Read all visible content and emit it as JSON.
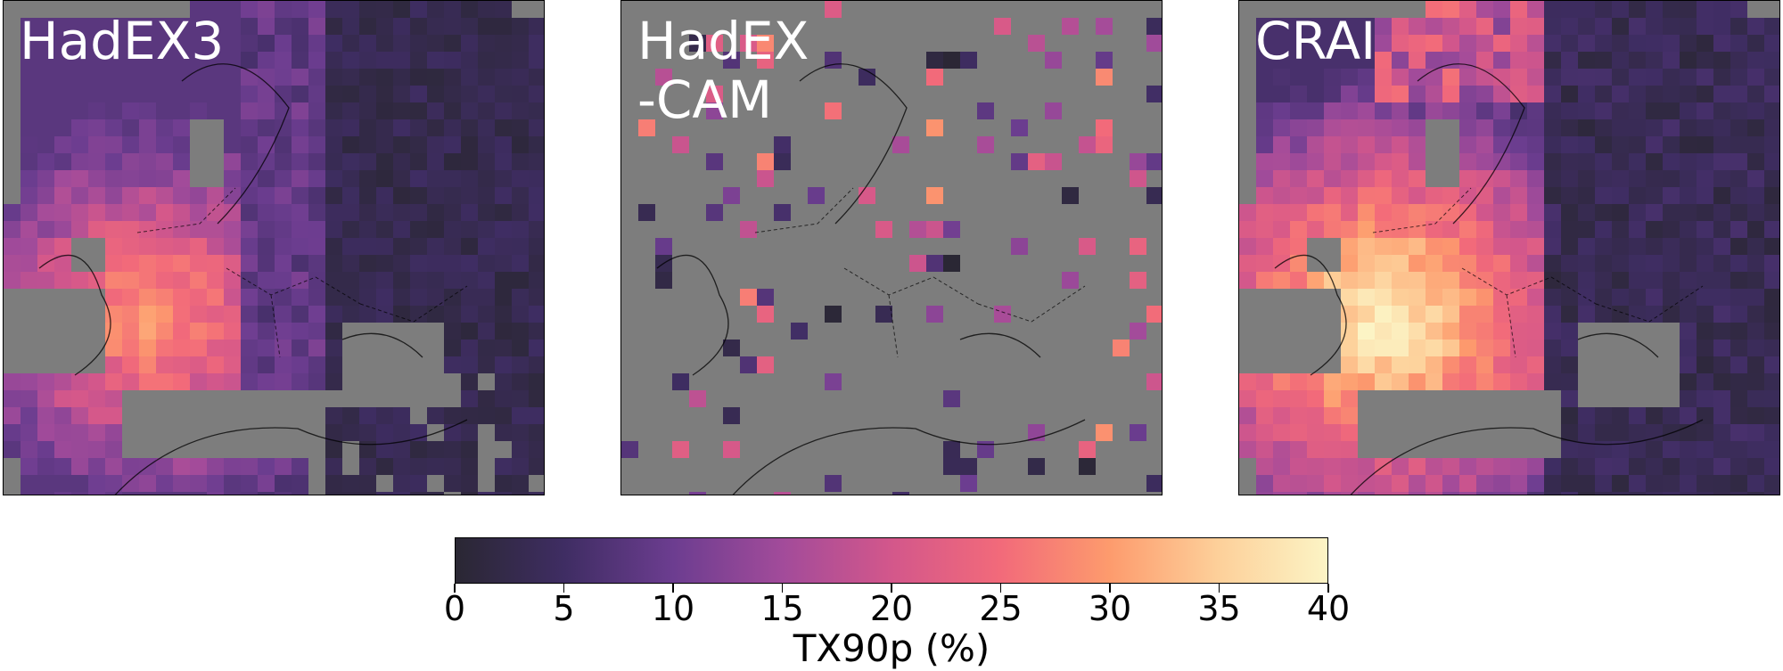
{
  "chart_data": {
    "type": "heatmap",
    "panels": [
      {
        "title": "HadEX3",
        "grid": "dense-gridded",
        "coverage": "most of Europe; ocean and eastern Mediterranean masked grey"
      },
      {
        "title": "HadEX\n-CAM",
        "grid": "sparse-station-cells",
        "coverage": "isolated grid cells only"
      },
      {
        "title": "CRAI",
        "grid": "dense-gridded",
        "coverage": "near-complete coverage of Europe"
      }
    ],
    "colorbar": {
      "label": "TX90p (%)",
      "range": [
        0,
        40
      ],
      "ticks": [
        "0",
        "5",
        "10",
        "15",
        "20",
        "25",
        "30",
        "35",
        "40"
      ],
      "colormap": "magma",
      "stops": [
        "#2a2733",
        "#3f2d63",
        "#6c3d90",
        "#a24b9a",
        "#d3578b",
        "#f26a7a",
        "#fd9b6d",
        "#fdd09a",
        "#fcf4c5"
      ]
    },
    "nodata_color": "#7d7d7d"
  }
}
